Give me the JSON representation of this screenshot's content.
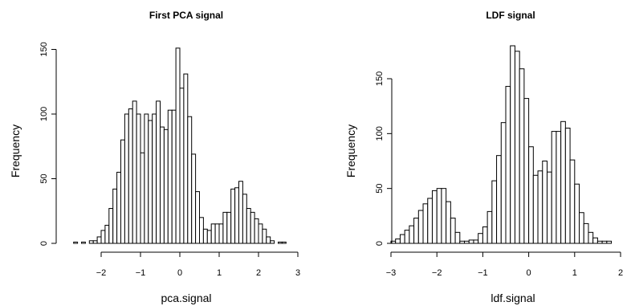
{
  "chart_data": [
    {
      "type": "bar",
      "title": "First PCA signal",
      "xlabel": "pca.signal",
      "ylabel": "Frequency",
      "bin_width": 0.1,
      "bin_start": -2.7,
      "xlim": [
        -2.7,
        3.2
      ],
      "ylim": [
        0,
        150
      ],
      "xticks": [
        -2,
        -1,
        0,
        1,
        2,
        3
      ],
      "yticks": [
        0,
        50,
        100,
        150
      ],
      "values": [
        1,
        0,
        1,
        0,
        2,
        2,
        5,
        10,
        14,
        27,
        42,
        55,
        80,
        100,
        104,
        110,
        100,
        70,
        100,
        95,
        100,
        110,
        90,
        88,
        103,
        103,
        151,
        120,
        131,
        98,
        69,
        40,
        20,
        11,
        10,
        15,
        15,
        15,
        24,
        24,
        42,
        43,
        48,
        38,
        27,
        24,
        19,
        15,
        11,
        5,
        2,
        0,
        1,
        1
      ]
    },
    {
      "type": "bar",
      "title": "LDF signal",
      "xlabel": "ldf.signal",
      "ylabel": "Frequency",
      "bin_width": 0.1,
      "bin_start": -3.0,
      "xlim": [
        -3.0,
        2.2
      ],
      "ylim": [
        0,
        180
      ],
      "xticks": [
        -3,
        -2,
        -1,
        0,
        1,
        2
      ],
      "yticks": [
        0,
        50,
        100,
        150
      ],
      "values": [
        2,
        4,
        8,
        12,
        16,
        23,
        30,
        36,
        41,
        48,
        50,
        50,
        38,
        23,
        10,
        2,
        2,
        3,
        3,
        9,
        15,
        29,
        57,
        80,
        110,
        143,
        180,
        175,
        159,
        132,
        88,
        62,
        66,
        75,
        65,
        102,
        102,
        111,
        105,
        76,
        54,
        28,
        18,
        10,
        5,
        2,
        2,
        2
      ]
    }
  ]
}
